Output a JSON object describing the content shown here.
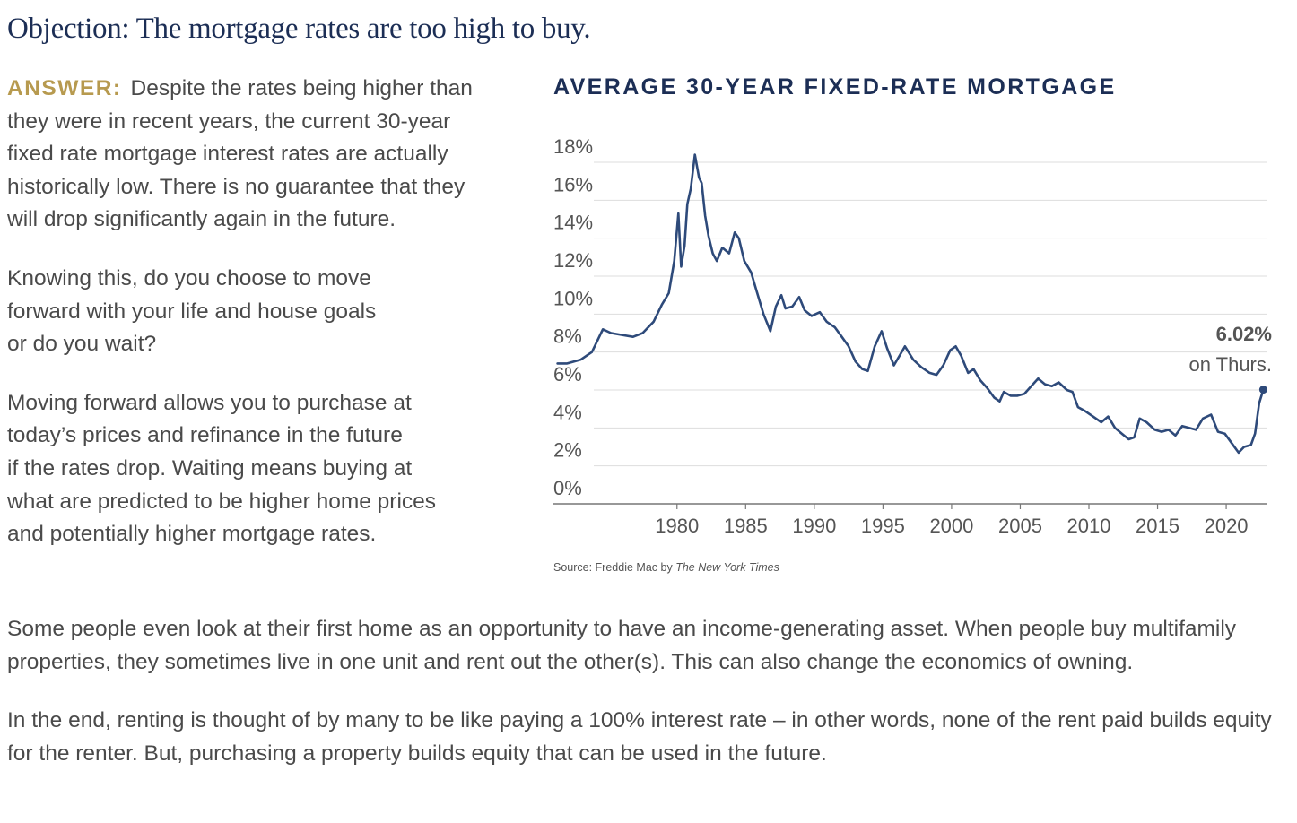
{
  "heading": "Objection: The mortgage rates are too high to buy.",
  "left": {
    "answer_label": "ANSWER:",
    "answer_text": "Despite the rates being higher than they were in recent years, the current 30-year fixed rate mortgage interest rates are actually historically low. There is no guarantee that they will drop significantly again in the future.",
    "paragraph2": "Knowing this, do you choose to move\nforward with your life and house goals\nor do you wait?",
    "paragraph3": "Moving forward allows you to purchase at\ntoday’s prices and refinance in the future\nif the rates drop. Waiting means buying at\nwhat are predicted to be higher home prices\nand potentially higher mortgage rates."
  },
  "bottom": {
    "paragraph1": "Some people even look at their first home as an opportunity to have an income-generating asset. When people buy multifamily properties, they sometimes live in one unit and rent out the other(s). This can also change the economics of owning.",
    "paragraph2": "In the end, renting is thought of by many to be like paying a 100% interest rate – in other words, none of the rent paid builds equity for the renter. But, purchasing a property builds equity that can be used in the future."
  },
  "source": {
    "text": "Source: Freddie Mac by",
    "publication": "The New York Times"
  },
  "colors": {
    "heading": "#1c2e55",
    "answer_label": "#b79a4f",
    "line": "#2e4a7a",
    "grid": "#dddddd"
  },
  "chart_data": {
    "type": "line",
    "title": "AVERAGE 30-YEAR FIXED-RATE MORTGAGE",
    "xlabel": "",
    "ylabel": "",
    "xlim": [
      1971,
      2023
    ],
    "ylim": [
      0,
      18
    ],
    "x_ticks": [
      1980,
      1985,
      1990,
      1995,
      2000,
      2005,
      2010,
      2015,
      2020
    ],
    "x_tick_labels": [
      "1980",
      "1985",
      "1990",
      "1995",
      "2000",
      "2005",
      "2010",
      "2015",
      "2020"
    ],
    "y_ticks": [
      0,
      2,
      4,
      6,
      8,
      10,
      12,
      14,
      16,
      18
    ],
    "y_tick_labels": [
      "0%",
      "2%",
      "4%",
      "6%",
      "8%",
      "10%",
      "12%",
      "14%",
      "16%",
      "18%"
    ],
    "grid": "horizontal",
    "annotation": {
      "value_label": "6.02%",
      "sub_label": "on Thurs.",
      "x": 2022.7,
      "y": 6.02
    },
    "series": [
      {
        "x": [
          1971.3,
          1972,
          1973,
          1973.8,
          1974.6,
          1975.2,
          1976,
          1976.8,
          1977.5,
          1978.3,
          1978.9,
          1979.4,
          1979.8,
          1980.1,
          1980.3,
          1980.55,
          1980.75,
          1981.0,
          1981.3,
          1981.6,
          1981.8,
          1982.05,
          1982.3,
          1982.6,
          1982.9,
          1983.3,
          1983.8,
          1984.2,
          1984.5,
          1984.9,
          1985.4,
          1985.8,
          1986.3,
          1986.8,
          1987.2,
          1987.6,
          1987.9,
          1988.4,
          1988.9,
          1989.3,
          1989.8,
          1990.4,
          1990.9,
          1991.5,
          1992.0,
          1992.5,
          1993.0,
          1993.5,
          1993.9,
          1994.4,
          1994.9,
          1995.3,
          1995.8,
          1996.2,
          1996.6,
          1997.2,
          1997.8,
          1998.4,
          1998.9,
          1999.4,
          1999.9,
          2000.3,
          2000.7,
          2001.2,
          2001.6,
          2002.1,
          2002.6,
          2003.1,
          2003.5,
          2003.8,
          2004.3,
          2004.8,
          2005.3,
          2005.8,
          2006.3,
          2006.8,
          2007.3,
          2007.8,
          2008.4,
          2008.8,
          2009.2,
          2009.7,
          2010.3,
          2010.9,
          2011.4,
          2011.9,
          2012.4,
          2012.9,
          2013.3,
          2013.7,
          2014.2,
          2014.8,
          2015.3,
          2015.8,
          2016.3,
          2016.8,
          2017.3,
          2017.8,
          2018.3,
          2018.9,
          2019.4,
          2019.9,
          2020.4,
          2020.9,
          2021.3,
          2021.8,
          2022.1,
          2022.4,
          2022.7
        ],
        "y": [
          7.4,
          7.4,
          7.6,
          8.0,
          9.2,
          9.0,
          8.9,
          8.8,
          9.0,
          9.6,
          10.5,
          11.1,
          12.8,
          15.3,
          12.5,
          13.6,
          15.8,
          16.6,
          18.4,
          17.2,
          16.9,
          15.2,
          14.1,
          13.2,
          12.8,
          13.5,
          13.2,
          14.3,
          14.0,
          12.8,
          12.2,
          11.2,
          10.0,
          9.1,
          10.4,
          11.0,
          10.3,
          10.4,
          10.9,
          10.2,
          9.9,
          10.1,
          9.6,
          9.3,
          8.8,
          8.3,
          7.5,
          7.1,
          7.0,
          8.3,
          9.1,
          8.2,
          7.3,
          7.8,
          8.3,
          7.6,
          7.2,
          6.9,
          6.8,
          7.3,
          8.1,
          8.3,
          7.8,
          6.9,
          7.1,
          6.5,
          6.1,
          5.6,
          5.4,
          5.9,
          5.7,
          5.7,
          5.8,
          6.2,
          6.6,
          6.3,
          6.2,
          6.4,
          6.0,
          5.9,
          5.1,
          4.9,
          4.6,
          4.3,
          4.6,
          4.0,
          3.7,
          3.4,
          3.5,
          4.5,
          4.3,
          3.9,
          3.8,
          3.9,
          3.6,
          4.1,
          4.0,
          3.9,
          4.5,
          4.7,
          3.8,
          3.7,
          3.2,
          2.7,
          3.0,
          3.1,
          3.7,
          5.3,
          6.02
        ]
      }
    ]
  }
}
